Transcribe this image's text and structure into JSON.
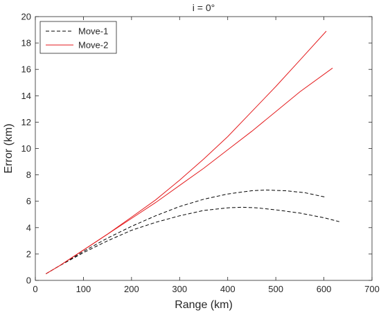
{
  "chart_data": {
    "type": "line",
    "title": "i = 0°",
    "xlabel": "Range (km)",
    "ylabel": "Error (km)",
    "xlim": [
      0,
      700
    ],
    "ylim": [
      0,
      20
    ],
    "xticks": [
      0,
      100,
      200,
      300,
      400,
      500,
      600,
      700
    ],
    "yticks": [
      0,
      2,
      4,
      6,
      8,
      10,
      12,
      14,
      16,
      18,
      20
    ],
    "grid": false,
    "legend_placement": "top-left",
    "legend": [
      {
        "label": "Move-1",
        "color": "#000000",
        "style": "dashed"
      },
      {
        "label": "Move-2",
        "color": "#e41a1c",
        "style": "solid"
      }
    ],
    "series": [
      {
        "group": "Move-1",
        "color": "#000000",
        "style": "dashed",
        "x": [
          22,
          50,
          100,
          150,
          200,
          250,
          300,
          350,
          400,
          450,
          480,
          520,
          560,
          605
        ],
        "y": [
          0.5,
          1.1,
          2.2,
          3.2,
          4.1,
          4.9,
          5.6,
          6.15,
          6.55,
          6.8,
          6.85,
          6.8,
          6.65,
          6.3
        ]
      },
      {
        "group": "Move-1",
        "color": "#000000",
        "style": "dashed",
        "x": [
          22,
          50,
          100,
          150,
          200,
          250,
          300,
          350,
          400,
          430,
          460,
          500,
          550,
          600,
          632
        ],
        "y": [
          0.5,
          1.1,
          2.1,
          3.0,
          3.8,
          4.4,
          4.9,
          5.3,
          5.5,
          5.55,
          5.5,
          5.35,
          5.1,
          4.75,
          4.45
        ]
      },
      {
        "group": "Move-2",
        "color": "#e41a1c",
        "style": "solid",
        "x": [
          22,
          50,
          100,
          150,
          200,
          250,
          300,
          350,
          400,
          450,
          500,
          550,
          605
        ],
        "y": [
          0.5,
          1.1,
          2.3,
          3.5,
          4.8,
          6.1,
          7.6,
          9.2,
          10.9,
          12.8,
          14.7,
          16.7,
          18.9
        ]
      },
      {
        "group": "Move-2",
        "color": "#e41a1c",
        "style": "solid",
        "x": [
          22,
          50,
          100,
          150,
          200,
          250,
          300,
          350,
          400,
          450,
          500,
          550,
          618
        ],
        "y": [
          0.5,
          1.1,
          2.3,
          3.5,
          4.7,
          5.9,
          7.2,
          8.5,
          9.9,
          11.3,
          12.8,
          14.3,
          16.1
        ]
      }
    ]
  }
}
